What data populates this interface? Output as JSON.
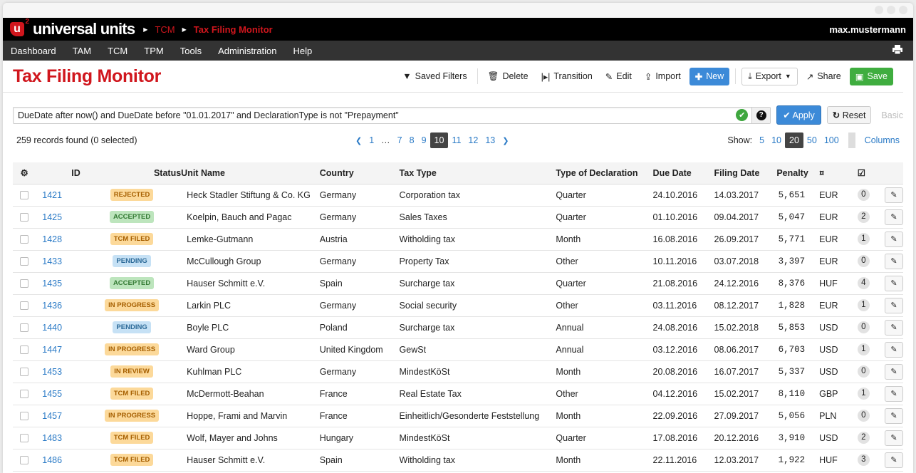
{
  "app": {
    "logo_letter": "u",
    "logo_sup": "2",
    "brand": "universal units",
    "breadcrumb": [
      "TCM",
      "Tax Filing Monitor"
    ],
    "user": "max.mustermann"
  },
  "nav": [
    "Dashboard",
    "TAM",
    "TCM",
    "TPM",
    "Tools",
    "Administration",
    "Help"
  ],
  "page": {
    "title": "Tax Filing Monitor"
  },
  "toolbar": {
    "saved_filters": "Saved Filters",
    "delete": "Delete",
    "transition": "Transition",
    "edit": "Edit",
    "import": "Import",
    "new": "New",
    "export": "Export",
    "share": "Share",
    "save": "Save"
  },
  "filter": {
    "query": "DueDate after now() and DueDate before \"01.01.2017\" and DeclarationType is not \"Prepayment\"",
    "apply": "Apply",
    "reset": "Reset",
    "basic": "Basic"
  },
  "records": "259 records found (0 selected)",
  "pagination": {
    "pages": [
      "1",
      "…",
      "7",
      "8",
      "9",
      "10",
      "11",
      "12",
      "13"
    ],
    "current": "10"
  },
  "show": {
    "label": "Show:",
    "options": [
      "5",
      "10",
      "20",
      "50",
      "100"
    ],
    "current": "20",
    "columns": "Columns"
  },
  "colors": {
    "brand": "#d0161d",
    "link": "#2a7ac6",
    "primary": "#3c8ad8",
    "success": "#3fad3f"
  },
  "status_styles": {
    "REJECTED": {
      "bg": "#fcd99a",
      "fg": "#a65f00"
    },
    "TCM FILED": {
      "bg": "#fcd99a",
      "fg": "#a65f00"
    },
    "IN PROGRESS": {
      "bg": "#fcd99a",
      "fg": "#a65f00"
    },
    "IN REVIEW": {
      "bg": "#fcd99a",
      "fg": "#a65f00"
    },
    "ACCEPTED": {
      "bg": "#bde5bd",
      "fg": "#347a34"
    },
    "PENDING": {
      "bg": "#c6e1f5",
      "fg": "#2c6a98"
    }
  },
  "table": {
    "columns": [
      "ID",
      "Status",
      "Unit Name",
      "Country",
      "Tax Type",
      "Type of Declaration",
      "Due Date",
      "Filing Date",
      "Penalty"
    ],
    "rows": [
      [
        "1421",
        "REJECTED",
        "Heck Stadler Stiftung & Co. KG",
        "Germany",
        "Corporation tax",
        "Quarter",
        "24.10.2016",
        "14.03.2017",
        "5,651",
        "EUR",
        "0"
      ],
      [
        "1425",
        "ACCEPTED",
        "Koelpin, Bauch and Pagac",
        "Germany",
        "Sales Taxes",
        "Quarter",
        "01.10.2016",
        "09.04.2017",
        "5,047",
        "EUR",
        "2"
      ],
      [
        "1428",
        "TCM FILED",
        "Lemke-Gutmann",
        "Austria",
        "Witholding tax",
        "Month",
        "16.08.2016",
        "26.09.2017",
        "5,771",
        "EUR",
        "1"
      ],
      [
        "1433",
        "PENDING",
        "McCullough Group",
        "Germany",
        "Property Tax",
        "Other",
        "10.11.2016",
        "03.07.2018",
        "3,397",
        "EUR",
        "0"
      ],
      [
        "1435",
        "ACCEPTED",
        "Hauser Schmitt e.V.",
        "Spain",
        "Surcharge tax",
        "Quarter",
        "21.08.2016",
        "24.12.2016",
        "8,376",
        "HUF",
        "4"
      ],
      [
        "1436",
        "IN PROGRESS",
        "Larkin PLC",
        "Germany",
        "Social security",
        "Other",
        "03.11.2016",
        "08.12.2017",
        "1,828",
        "EUR",
        "1"
      ],
      [
        "1440",
        "PENDING",
        "Boyle PLC",
        "Poland",
        "Surcharge tax",
        "Annual",
        "24.08.2016",
        "15.02.2018",
        "5,853",
        "USD",
        "0"
      ],
      [
        "1447",
        "IN PROGRESS",
        "Ward Group",
        "United Kingdom",
        "GewSt",
        "Annual",
        "03.12.2016",
        "08.06.2017",
        "6,703",
        "USD",
        "1"
      ],
      [
        "1453",
        "IN REVIEW",
        "Kuhlman PLC",
        "Germany",
        "MindestKöSt",
        "Month",
        "20.08.2016",
        "16.07.2017",
        "5,337",
        "USD",
        "0"
      ],
      [
        "1455",
        "TCM FILED",
        "McDermott-Beahan",
        "France",
        "Real Estate Tax",
        "Other",
        "04.12.2016",
        "15.02.2017",
        "8,110",
        "GBP",
        "1"
      ],
      [
        "1457",
        "IN PROGRESS",
        "Hoppe, Frami and Marvin",
        "France",
        "Einheitlich/Gesonderte Feststellung",
        "Month",
        "22.09.2016",
        "27.09.2017",
        "5,056",
        "PLN",
        "0"
      ],
      [
        "1483",
        "TCM FILED",
        "Wolf, Mayer and Johns",
        "Hungary",
        "MindestKöSt",
        "Quarter",
        "17.08.2016",
        "20.12.2016",
        "3,910",
        "USD",
        "2"
      ],
      [
        "1486",
        "TCM FILED",
        "Hauser Schmitt e.V.",
        "Spain",
        "Witholding tax",
        "Month",
        "22.11.2016",
        "12.03.2017",
        "1,922",
        "HUF",
        "3"
      ]
    ]
  }
}
